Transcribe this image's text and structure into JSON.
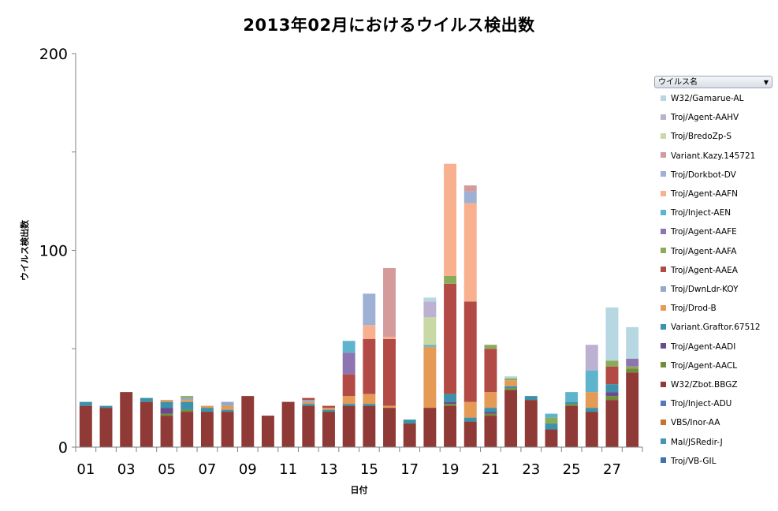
{
  "chart_data": {
    "type": "bar",
    "stacked": true,
    "title": "2013年02月におけるウイルス検出数",
    "xlabel": "日付",
    "ylabel": "ウイルス検出数",
    "ylim": [
      0,
      200
    ],
    "yticks": [
      0,
      100,
      200
    ],
    "categories": [
      "01",
      "02",
      "03",
      "04",
      "05",
      "06",
      "07",
      "08",
      "09",
      "10",
      "11",
      "12",
      "13",
      "14",
      "15",
      "16",
      "17",
      "18",
      "19",
      "20",
      "21",
      "22",
      "23",
      "24",
      "25",
      "26",
      "27",
      "28"
    ],
    "xtick_labels": [
      "01",
      "03",
      "05",
      "07",
      "09",
      "11",
      "13",
      "15",
      "17",
      "19",
      "21",
      "23",
      "25",
      "27"
    ],
    "legend_header": "ウイルス名",
    "legend_position": "right",
    "series": [
      {
        "name": "Troj/VB-GIL",
        "color": "#4472a8",
        "values": [
          0,
          0,
          0,
          0,
          0,
          0,
          0,
          0,
          0,
          0,
          0,
          0,
          0,
          0,
          0,
          0,
          0,
          0,
          0,
          0,
          0,
          0,
          0,
          0,
          0,
          0,
          0,
          0
        ]
      },
      {
        "name": "Mal/JSRedir-J",
        "color": "#4197b5",
        "values": [
          0,
          0,
          0,
          0,
          0,
          0,
          0,
          0,
          0,
          0,
          0,
          0,
          0,
          0,
          0,
          0,
          0,
          0,
          0,
          0,
          0,
          0,
          0,
          0,
          0,
          0,
          0,
          0
        ]
      },
      {
        "name": "VBS/Inor-AA",
        "color": "#c8722f",
        "values": [
          0,
          0,
          0,
          0,
          0,
          0,
          0,
          0,
          0,
          0,
          0,
          0,
          0,
          0,
          0,
          0,
          0,
          0,
          0,
          0,
          0,
          0,
          0,
          0,
          0,
          0,
          0,
          0
        ]
      },
      {
        "name": "Troj/Inject-ADU",
        "color": "#5679bb",
        "values": [
          0,
          0,
          0,
          0,
          0,
          0,
          0,
          0,
          0,
          0,
          0,
          0,
          0,
          0,
          0,
          0,
          0,
          0,
          0,
          0,
          0,
          0,
          0,
          0,
          0,
          0,
          0,
          0
        ]
      },
      {
        "name": "W32/Zbot.BBGZ",
        "color": "#8f3a36",
        "values": [
          21,
          20,
          28,
          23,
          16,
          18,
          18,
          18,
          26,
          16,
          23,
          21,
          18,
          21,
          21,
          20,
          12,
          20,
          21,
          13,
          16,
          29,
          24,
          9,
          21,
          18,
          24,
          38
        ]
      },
      {
        "name": "Troj/Agent-AACL",
        "color": "#6e8e3a",
        "values": [
          0,
          0,
          0,
          0,
          1,
          1,
          0,
          0,
          0,
          0,
          0,
          0,
          0,
          0,
          0,
          0,
          0,
          0,
          1,
          0,
          1,
          1,
          0,
          0,
          1,
          0,
          2,
          2
        ]
      },
      {
        "name": "Troj/Agent-AADI",
        "color": "#6a4c8c",
        "values": [
          0,
          0,
          0,
          0,
          3,
          0,
          0,
          0,
          0,
          0,
          0,
          0,
          0,
          0,
          0,
          0,
          0,
          0,
          1,
          0,
          1,
          0,
          0,
          0,
          0,
          0,
          2,
          0
        ]
      },
      {
        "name": "Variant.Graftor.67512",
        "color": "#3b93ab",
        "values": [
          2,
          1,
          0,
          2,
          3,
          4,
          2,
          1,
          0,
          0,
          0,
          1,
          1,
          1,
          1,
          0,
          2,
          0,
          4,
          2,
          2,
          1,
          2,
          3,
          1,
          2,
          4,
          0
        ]
      },
      {
        "name": "Troj/Drod-B",
        "color": "#e59a56",
        "values": [
          0,
          0,
          0,
          0,
          1,
          1,
          1,
          2,
          0,
          0,
          0,
          1,
          1,
          4,
          5,
          1,
          0,
          31,
          0,
          8,
          8,
          3,
          0,
          0,
          0,
          8,
          0,
          0
        ]
      },
      {
        "name": "Troj/DwnLdr-KOY",
        "color": "#93a9c9",
        "values": [
          0,
          0,
          0,
          0,
          0,
          1,
          0,
          2,
          0,
          0,
          0,
          1,
          0,
          0,
          0,
          0,
          0,
          0,
          0,
          0,
          0,
          0,
          0,
          0,
          0,
          0,
          0,
          0
        ]
      },
      {
        "name": "Troj/Agent-AAEA",
        "color": "#b24a45",
        "values": [
          0,
          0,
          0,
          0,
          0,
          0,
          0,
          0,
          0,
          0,
          0,
          1,
          1,
          11,
          28,
          34,
          0,
          0,
          56,
          51,
          22,
          0,
          0,
          0,
          0,
          0,
          9,
          0
        ]
      },
      {
        "name": "Troj/Agent-AAFA",
        "color": "#8cab5a",
        "values": [
          0,
          0,
          0,
          0,
          0,
          1,
          0,
          0,
          0,
          0,
          0,
          0,
          0,
          0,
          0,
          0,
          0,
          0,
          4,
          0,
          2,
          1,
          0,
          3,
          0,
          0,
          3,
          1
        ]
      },
      {
        "name": "Troj/Agent-AAFE",
        "color": "#8e74b0",
        "values": [
          0,
          0,
          0,
          0,
          0,
          0,
          0,
          0,
          0,
          0,
          0,
          0,
          0,
          11,
          0,
          0,
          0,
          0,
          0,
          0,
          0,
          0,
          0,
          0,
          0,
          0,
          0,
          4
        ]
      },
      {
        "name": "Troj/Inject-AEN",
        "color": "#5db4cc",
        "values": [
          0,
          0,
          0,
          0,
          0,
          0,
          0,
          0,
          0,
          0,
          0,
          0,
          0,
          6,
          0,
          0,
          0,
          1,
          0,
          0,
          0,
          0,
          0,
          2,
          5,
          11,
          0,
          0
        ]
      },
      {
        "name": "Troj/Agent-AAFN",
        "color": "#f8b08f",
        "values": [
          0,
          0,
          0,
          0,
          0,
          0,
          0,
          0,
          0,
          0,
          0,
          0,
          0,
          0,
          7,
          1,
          0,
          0,
          57,
          50,
          0,
          0,
          0,
          0,
          0,
          0,
          0,
          0
        ]
      },
      {
        "name": "Troj/Dorkbot-DV",
        "color": "#9eb0d4",
        "values": [
          0,
          0,
          0,
          0,
          0,
          0,
          0,
          0,
          0,
          0,
          0,
          0,
          0,
          0,
          16,
          0,
          0,
          0,
          0,
          6,
          0,
          0,
          0,
          0,
          0,
          0,
          0,
          0
        ]
      },
      {
        "name": "Variant.Kazy.145721",
        "color": "#d49b9b",
        "values": [
          0,
          0,
          0,
          0,
          0,
          0,
          0,
          0,
          0,
          0,
          0,
          0,
          0,
          0,
          0,
          35,
          0,
          0,
          0,
          3,
          0,
          0,
          0,
          0,
          0,
          0,
          0,
          0
        ]
      },
      {
        "name": "Troj/BredoZp-S",
        "color": "#c9d9a6",
        "values": [
          0,
          0,
          0,
          0,
          0,
          0,
          0,
          0,
          0,
          0,
          0,
          0,
          0,
          0,
          0,
          0,
          0,
          14,
          0,
          0,
          0,
          0,
          0,
          0,
          0,
          0,
          0,
          0
        ]
      },
      {
        "name": "Troj/Agent-AAHV",
        "color": "#bcb1d0",
        "values": [
          0,
          0,
          0,
          0,
          0,
          0,
          0,
          0,
          0,
          0,
          0,
          0,
          0,
          0,
          0,
          0,
          0,
          8,
          0,
          0,
          0,
          0,
          0,
          0,
          0,
          13,
          0,
          0
        ]
      },
      {
        "name": "W32/Gamarue-AL",
        "color": "#b7d7e2",
        "values": [
          0,
          0,
          0,
          0,
          0,
          0,
          0,
          0,
          0,
          0,
          0,
          0,
          0,
          0,
          0,
          0,
          0,
          2,
          0,
          0,
          0,
          1,
          0,
          0,
          0,
          0,
          27,
          16
        ]
      }
    ]
  }
}
